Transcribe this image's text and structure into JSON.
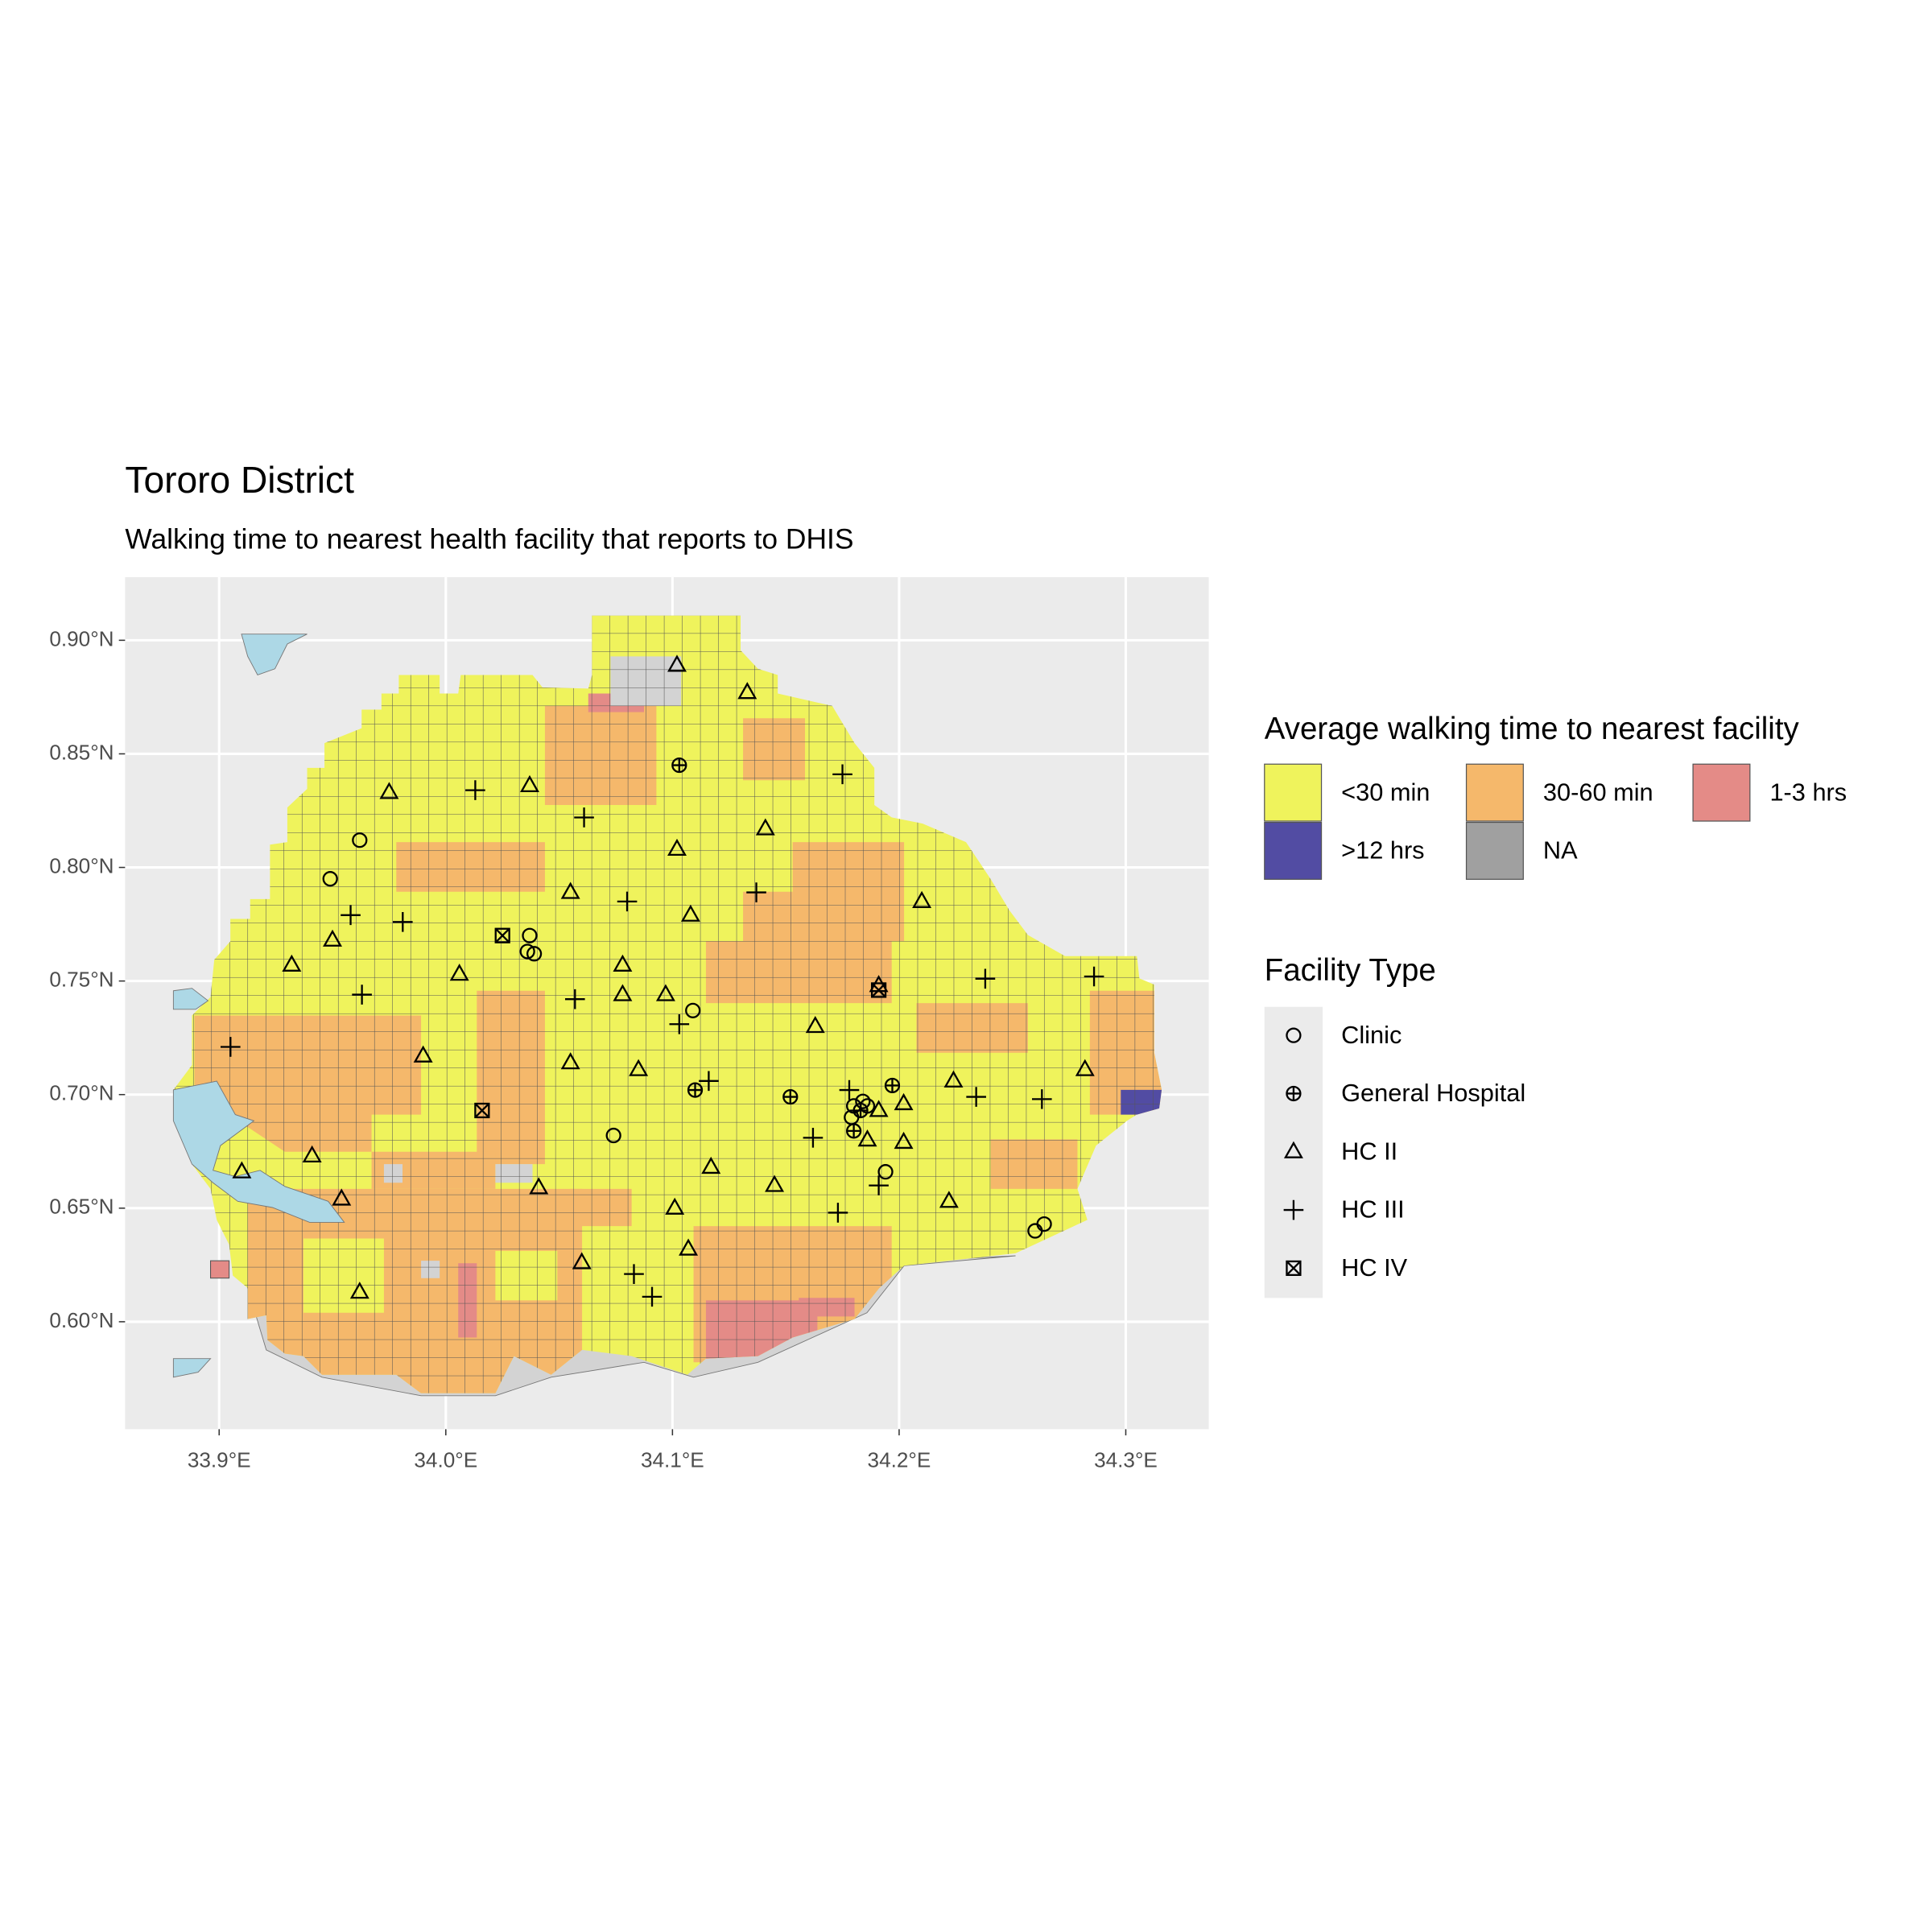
{
  "title": "Tororo District",
  "subtitle": "Walking time to nearest health facility that reports to DHIS",
  "map": {
    "xlim": [
      33.8585,
      34.3366
    ],
    "ylim": [
      0.5527,
      0.9278
    ],
    "xticks": [
      {
        "value": 33.9,
        "label": "33.9°E"
      },
      {
        "value": 34.0,
        "label": "34.0°E"
      },
      {
        "value": 34.1,
        "label": "34.1°E"
      },
      {
        "value": 34.2,
        "label": "34.2°E"
      },
      {
        "value": 34.3,
        "label": "34.3°E"
      }
    ],
    "yticks": [
      {
        "value": 0.6,
        "label": "0.60°N"
      },
      {
        "value": 0.65,
        "label": "0.65°N"
      },
      {
        "value": 0.7,
        "label": "0.70°N"
      },
      {
        "value": 0.75,
        "label": "0.75°N"
      },
      {
        "value": 0.8,
        "label": "0.80°N"
      },
      {
        "value": 0.85,
        "label": "0.85°N"
      },
      {
        "value": 0.9,
        "label": "0.90°N"
      }
    ],
    "grid": true
  },
  "legend_fill": {
    "title": "Average walking time to nearest facility",
    "items": [
      {
        "label": "<30 min",
        "color": "#eff35c"
      },
      {
        "label": "30-60 min",
        "color": "#f5b86b"
      },
      {
        "label": "1-3 hrs",
        "color": "#e48b87"
      },
      {
        "label": ">12 hrs",
        "color": "#524ca3"
      },
      {
        "label": "NA",
        "color": "#a0a0a0"
      }
    ]
  },
  "legend_facility": {
    "title": "Facility Type",
    "items": [
      {
        "label": "Clinic",
        "shape": "circle",
        "points": [
          [
            33.962,
            0.812
          ],
          [
            33.949,
            0.795
          ],
          [
            34.037,
            0.77
          ],
          [
            34.036,
            0.763
          ],
          [
            34.039,
            0.762
          ],
          [
            34.109,
            0.737
          ],
          [
            34.074,
            0.682
          ],
          [
            34.194,
            0.666
          ],
          [
            34.26,
            0.64
          ],
          [
            34.264,
            0.643
          ],
          [
            34.18,
            0.695
          ],
          [
            34.179,
            0.69
          ],
          [
            34.184,
            0.697
          ],
          [
            34.186,
            0.695
          ]
        ]
      },
      {
        "label": "General Hospital",
        "shape": "circle-plus",
        "points": [
          [
            34.103,
            0.845
          ],
          [
            34.11,
            0.702
          ],
          [
            34.152,
            0.699
          ],
          [
            34.197,
            0.704
          ],
          [
            34.18,
            0.684
          ],
          [
            34.183,
            0.693
          ]
        ]
      },
      {
        "label": "HC II",
        "shape": "triangle",
        "points": [
          [
            34.102,
            0.889
          ],
          [
            34.133,
            0.877
          ],
          [
            33.975,
            0.833
          ],
          [
            34.037,
            0.836
          ],
          [
            34.141,
            0.817
          ],
          [
            34.102,
            0.808
          ],
          [
            34.055,
            0.789
          ],
          [
            34.108,
            0.779
          ],
          [
            34.21,
            0.785
          ],
          [
            33.95,
            0.768
          ],
          [
            33.932,
            0.757
          ],
          [
            34.078,
            0.757
          ],
          [
            34.078,
            0.744
          ],
          [
            34.006,
            0.753
          ],
          [
            34.097,
            0.744
          ],
          [
            34.191,
            0.748
          ],
          [
            34.163,
            0.73
          ],
          [
            33.99,
            0.717
          ],
          [
            34.055,
            0.714
          ],
          [
            34.085,
            0.711
          ],
          [
            34.224,
            0.706
          ],
          [
            34.282,
            0.711
          ],
          [
            34.202,
            0.696
          ],
          [
            34.191,
            0.693
          ],
          [
            34.186,
            0.68
          ],
          [
            34.202,
            0.679
          ],
          [
            34.117,
            0.668
          ],
          [
            33.91,
            0.666
          ],
          [
            33.941,
            0.673
          ],
          [
            33.954,
            0.654
          ],
          [
            34.041,
            0.659
          ],
          [
            34.145,
            0.66
          ],
          [
            34.101,
            0.65
          ],
          [
            34.222,
            0.653
          ],
          [
            34.107,
            0.632
          ],
          [
            34.06,
            0.626
          ],
          [
            33.962,
            0.613
          ]
        ]
      },
      {
        "label": "HC III",
        "shape": "plus",
        "points": [
          [
            34.013,
            0.834
          ],
          [
            34.175,
            0.841
          ],
          [
            34.061,
            0.822
          ],
          [
            34.08,
            0.785
          ],
          [
            34.137,
            0.789
          ],
          [
            33.958,
            0.779
          ],
          [
            33.981,
            0.776
          ],
          [
            33.963,
            0.744
          ],
          [
            34.057,
            0.742
          ],
          [
            34.238,
            0.751
          ],
          [
            34.286,
            0.752
          ],
          [
            34.103,
            0.731
          ],
          [
            33.905,
            0.721
          ],
          [
            34.116,
            0.706
          ],
          [
            34.178,
            0.702
          ],
          [
            34.234,
            0.699
          ],
          [
            34.263,
            0.698
          ],
          [
            34.162,
            0.681
          ],
          [
            34.191,
            0.66
          ],
          [
            34.173,
            0.648
          ],
          [
            34.083,
            0.621
          ],
          [
            34.091,
            0.611
          ]
        ]
      },
      {
        "label": "HC IV",
        "shape": "square-x",
        "points": [
          [
            34.025,
            0.77
          ],
          [
            34.016,
            0.693
          ],
          [
            34.191,
            0.746
          ]
        ]
      }
    ]
  }
}
